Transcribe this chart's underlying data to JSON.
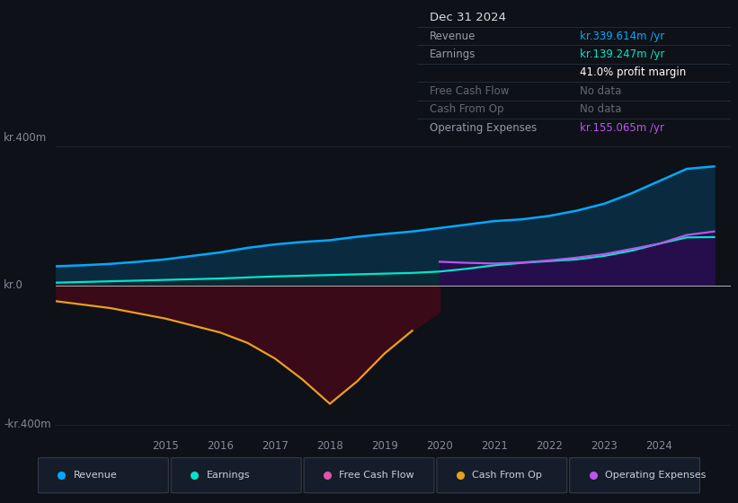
{
  "background_color": "#0e1117",
  "plot_bg_color": "#0e1117",
  "ylabel_top": "kr.400m",
  "ylabel_zero": "kr.0",
  "ylabel_bottom": "-kr.400m",
  "x_ticks": [
    2015,
    2016,
    2017,
    2018,
    2019,
    2020,
    2021,
    2022,
    2023,
    2024
  ],
  "revenue_color": "#00aaff",
  "earnings_color": "#00e5cc",
  "free_cash_flow_color": "#e055aa",
  "cash_from_op_color": "#e8a020",
  "operating_expenses_color": "#bb55ee",
  "info_box_bg": "#111922",
  "info_title": "Dec 31 2024",
  "info_rows": [
    [
      "Revenue",
      "kr.339.614m /yr",
      "#00aaff"
    ],
    [
      "Earnings",
      "kr.139.247m /yr",
      "#00e5cc"
    ],
    [
      "",
      "41.0% profit margin",
      "#ffffff"
    ],
    [
      "Free Cash Flow",
      "No data",
      "#555566"
    ],
    [
      "Cash From Op",
      "No data",
      "#555566"
    ],
    [
      "Operating Expenses",
      "kr.155.065m /yr",
      "#bb55ee"
    ]
  ],
  "legend_items": [
    [
      "Revenue",
      "#00aaff"
    ],
    [
      "Earnings",
      "#00e5cc"
    ],
    [
      "Free Cash Flow",
      "#e055aa"
    ],
    [
      "Cash From Op",
      "#e8a020"
    ],
    [
      "Operating Expenses",
      "#bb55ee"
    ]
  ],
  "x": [
    2013.0,
    2013.5,
    2014.0,
    2014.5,
    2015.0,
    2015.5,
    2016.0,
    2016.5,
    2017.0,
    2017.5,
    2018.0,
    2018.5,
    2019.0,
    2019.5,
    2020.0,
    2020.5,
    2021.0,
    2021.5,
    2022.0,
    2022.5,
    2023.0,
    2023.5,
    2024.0,
    2024.5,
    2025.0
  ],
  "revenue": [
    55,
    58,
    62,
    68,
    75,
    85,
    95,
    108,
    118,
    125,
    130,
    140,
    148,
    155,
    165,
    175,
    185,
    190,
    200,
    215,
    235,
    265,
    300,
    335,
    342
  ],
  "earnings": [
    8,
    10,
    12,
    14,
    16,
    18,
    20,
    23,
    26,
    28,
    30,
    32,
    34,
    36,
    40,
    48,
    58,
    65,
    70,
    75,
    85,
    100,
    120,
    138,
    139
  ],
  "op_expenses": [
    0,
    0,
    0,
    0,
    0,
    0,
    0,
    0,
    0,
    0,
    0,
    0,
    0,
    0,
    68,
    65,
    63,
    66,
    72,
    80,
    90,
    105,
    120,
    145,
    155
  ],
  "cash_from_op": [
    -45,
    -55,
    -65,
    -80,
    -95,
    -115,
    -135,
    -165,
    -210,
    -270,
    -340,
    -275,
    -195,
    -130,
    -75,
    0,
    0,
    0,
    0,
    0,
    0,
    0,
    0,
    0,
    0
  ],
  "op_expenses_start": 2020.0,
  "cash_from_op_end": 2019.75,
  "ylim": [
    -430,
    430
  ],
  "xlim": [
    2013.0,
    2025.3
  ]
}
